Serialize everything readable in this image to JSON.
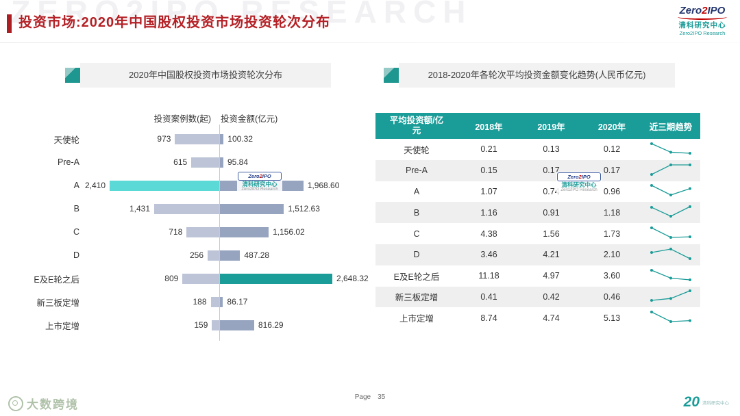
{
  "header": {
    "title_prefix": "投资市场:",
    "title_rest": "2020年中国股权投资市场投资轮次分布",
    "background_watermark": "ZERO2IPO RESEARCH"
  },
  "brand": {
    "zero": "Zero",
    "two": "2",
    "ipo": "IPO",
    "cn": "清科研究中心",
    "en": "Zero2IPO Research"
  },
  "left_panel": {
    "title": "2020年中国股权投资市场投资轮次分布",
    "col_cases": "投资案例数(起)",
    "col_amount": "投资金额(亿元)"
  },
  "right_panel": {
    "title": "2018-2020年各轮次平均投资金额变化趋势(人民币亿元)"
  },
  "chart_data": [
    {
      "type": "bar",
      "subtype": "tornado",
      "title": "2020年中国股权投资市场投资轮次分布",
      "categories": [
        "天使轮",
        "Pre-A",
        "A",
        "B",
        "C",
        "D",
        "E及E轮之后",
        "新三板定增",
        "上市定增"
      ],
      "series": [
        {
          "name": "投资案例数(起)",
          "side": "left",
          "values": [
            973,
            615,
            2410,
            1431,
            718,
            256,
            809,
            188,
            159
          ],
          "labels": [
            "973",
            "615",
            "2,410",
            "1,431",
            "718",
            "256",
            "809",
            "188",
            "159"
          ],
          "highlight_index": 2
        },
        {
          "name": "投资金额(亿元)",
          "side": "right",
          "values": [
            100.32,
            95.84,
            1968.6,
            1512.63,
            1156.02,
            487.28,
            2648.32,
            86.17,
            816.29
          ],
          "labels": [
            "100.32",
            "95.84",
            "1,968.60",
            "1,512.63",
            "1,156.02",
            "487.28",
            "2,648.32",
            "86.17",
            "816.29"
          ],
          "highlight_index": 6
        }
      ],
      "colors": {
        "cases_bar": "#BDC4D7",
        "amount_bar": "#97A4BF",
        "cases_highlight": "#5BD9D6",
        "amount_highlight": "#1A9C98"
      },
      "legend_position": "none",
      "grid": false
    },
    {
      "type": "table",
      "title": "2018-2020年各轮次平均投资金额变化趋势(人民币亿元)",
      "columns": [
        "平均投资额/亿元",
        "2018年",
        "2019年",
        "2020年",
        "近三期趋势"
      ],
      "rows": [
        {
          "label": "天使轮",
          "values": [
            0.21,
            0.13,
            0.12
          ]
        },
        {
          "label": "Pre-A",
          "values": [
            0.15,
            0.17,
            0.17
          ]
        },
        {
          "label": "A",
          "values": [
            1.07,
            0.74,
            0.96
          ]
        },
        {
          "label": "B",
          "values": [
            1.16,
            0.91,
            1.18
          ]
        },
        {
          "label": "C",
          "values": [
            4.38,
            1.56,
            1.73
          ]
        },
        {
          "label": "D",
          "values": [
            3.46,
            4.21,
            2.1
          ]
        },
        {
          "label": "E及E轮之后",
          "values": [
            11.18,
            4.97,
            3.6
          ]
        },
        {
          "label": "新三板定增",
          "values": [
            0.41,
            0.42,
            0.46
          ]
        },
        {
          "label": "上市定增",
          "values": [
            8.74,
            4.74,
            5.13
          ]
        }
      ],
      "header_color": "#1A9C98",
      "trend_color": "#1A9C98"
    }
  ],
  "footer": {
    "page_label": "Page",
    "page_number": "35",
    "left_logo_text": "大数跨境",
    "right_logo_number": "20",
    "right_logo_text": "清科研究中心"
  }
}
